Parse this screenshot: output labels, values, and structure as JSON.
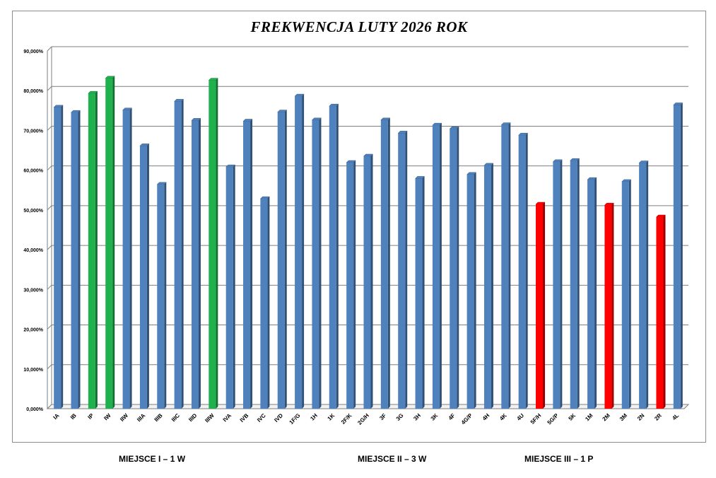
{
  "chart_data": {
    "type": "bar",
    "title": "FREKWENCJA LUTY 2026 ROK",
    "xlabel": "",
    "ylabel": "",
    "ylim": [
      0,
      90
    ],
    "yticks": [
      "0,000%",
      "10,000%",
      "20,000%",
      "30,000%",
      "40,000%",
      "50,000%",
      "60,000%",
      "70,000%",
      "80,000%",
      "90,000%"
    ],
    "grid": true,
    "categories": [
      "IA",
      "IB",
      "IP",
      "IW",
      "IIW",
      "IIIA",
      "IIIB",
      "IIIC",
      "IIID",
      "IIIW",
      "IVA",
      "IVB",
      "IVC",
      "IVD",
      "1F/G",
      "1H",
      "1K",
      "2F/K",
      "2G/H",
      "3F",
      "3G",
      "3H",
      "3K",
      "4F",
      "4G/P",
      "4H",
      "4K",
      "4U",
      "5F/H",
      "5G/P",
      "5K",
      "1M",
      "2M",
      "3M",
      "2N",
      "2R",
      "4L"
    ],
    "values": [
      75.8,
      74.5,
      79.3,
      83.1,
      75.1,
      66.1,
      56.4,
      77.3,
      72.5,
      82.6,
      60.8,
      72.3,
      52.8,
      74.6,
      78.6,
      72.6,
      76.1,
      61.9,
      63.5,
      72.6,
      69.3,
      57.9,
      71.3,
      70.4,
      58.9,
      61.2,
      71.4,
      68.8,
      51.4,
      62.1,
      62.4,
      57.6,
      51.2,
      57.1,
      61.8,
      48.2,
      76.4
    ],
    "bar_colors": [
      "blue",
      "blue",
      "green",
      "green",
      "blue",
      "blue",
      "blue",
      "blue",
      "blue",
      "green",
      "blue",
      "blue",
      "blue",
      "blue",
      "blue",
      "blue",
      "blue",
      "blue",
      "blue",
      "blue",
      "blue",
      "blue",
      "blue",
      "blue",
      "blue",
      "blue",
      "blue",
      "blue",
      "red",
      "blue",
      "blue",
      "blue",
      "red",
      "blue",
      "blue",
      "red",
      "blue"
    ],
    "colors": {
      "blue": "#4f81bd",
      "green": "#1eb14d",
      "red": "#ff0000"
    }
  },
  "footer": {
    "place1": "MIEJSCE I – 1 W",
    "place2": "MIEJSCE II – 3 W",
    "place3": "MIEJSCE III – 1 P"
  }
}
